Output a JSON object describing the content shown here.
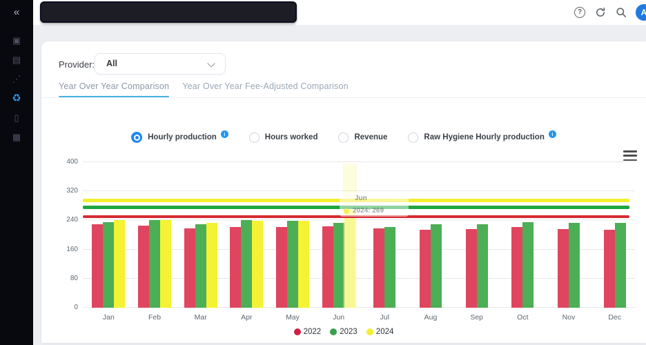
{
  "sidebar": {
    "collapse_glyph": "«",
    "items": [
      {
        "name": "tooth-icon",
        "glyph": "▣",
        "active": false
      },
      {
        "name": "reports-icon",
        "glyph": "▤",
        "active": false
      },
      {
        "name": "trend-dots-icon",
        "glyph": "⋰",
        "active": false
      },
      {
        "name": "analytics-module-icon",
        "glyph": "♻",
        "active": true
      },
      {
        "name": "device-icon",
        "glyph": "▯",
        "active": false
      },
      {
        "name": "apps-grid-icon",
        "glyph": "▦",
        "active": false
      }
    ]
  },
  "topbar": {
    "help_glyph": "?",
    "avatar_letter": "A"
  },
  "filters": {
    "provider_label": "Provider:",
    "provider_value": "All"
  },
  "tabs": [
    {
      "label": "Year Over Year Comparison",
      "active": true
    },
    {
      "label": "Year Over Year Fee-Adjusted Comparison",
      "active": false
    }
  ],
  "metrics": [
    {
      "label": "Hourly production",
      "selected": true,
      "info": true
    },
    {
      "label": "Hours worked",
      "selected": false,
      "info": false
    },
    {
      "label": "Revenue",
      "selected": false,
      "info": false
    },
    {
      "label": "Raw Hygiene Hourly production",
      "selected": false,
      "info": true
    }
  ],
  "chart_data": {
    "type": "bar",
    "categories": [
      "Jan",
      "Feb",
      "Mar",
      "Apr",
      "May",
      "Jun",
      "Jul",
      "Aug",
      "Sep",
      "Oct",
      "Nov",
      "Dec"
    ],
    "series": [
      {
        "name": "2022",
        "color": "#e0455f",
        "values": [
          230,
          226,
          218,
          222,
          222,
          223,
          218,
          215,
          217,
          221,
          216,
          214
        ]
      },
      {
        "name": "2023",
        "color": "#4cae55",
        "values": [
          235,
          240,
          230,
          240,
          238,
          233,
          221,
          230,
          229,
          235,
          234,
          234
        ]
      },
      {
        "name": "2024",
        "color": "#f4f233",
        "values": [
          240,
          240,
          234,
          238,
          238,
          269,
          null,
          null,
          null,
          null,
          null,
          null
        ]
      }
    ],
    "highlight": {
      "series": "2024",
      "category_index": 5,
      "bar_color": "#f8f795"
    },
    "reference_lines": [
      {
        "name": "2024-average-line",
        "value": 295,
        "color": "#f2ef2e"
      },
      {
        "name": "2023-average-line",
        "value": 276,
        "color": "#1fa63e"
      },
      {
        "name": "2022-average-line",
        "value": 251,
        "color": "#d62b33"
      }
    ],
    "ylim": [
      0,
      400
    ],
    "yticks": [
      0,
      80,
      160,
      240,
      320,
      400
    ],
    "grid": true,
    "legend_position": "bottom",
    "legend": [
      {
        "label": "2022",
        "color": "#d21f42"
      },
      {
        "label": "2023",
        "color": "#36a34c"
      },
      {
        "label": "2024",
        "color": "#f2ef2e"
      }
    ],
    "tooltip": {
      "category": "Jun",
      "series": "2024",
      "value": 269
    },
    "title": "",
    "xlabel": "",
    "ylabel": ""
  }
}
